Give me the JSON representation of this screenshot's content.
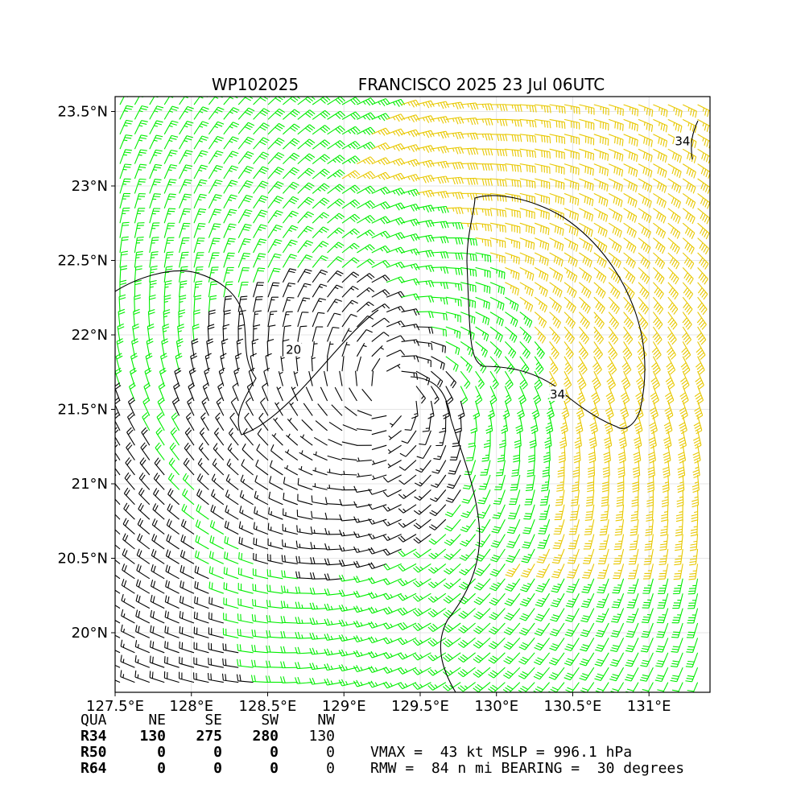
{
  "chart_data": {
    "type": "wind-barb-map",
    "title_id": "WP102025",
    "title_main": "FRANCISCO 2025 23 Jul 06UTC",
    "lon_range": [
      127.5,
      131.4
    ],
    "lat_range": [
      19.6,
      23.6
    ],
    "x_ticks": [
      127.5,
      128.0,
      128.5,
      129.0,
      129.5,
      130.0,
      130.5,
      131.0
    ],
    "x_tick_labels": [
      "127.5°E",
      "128°E",
      "128.5°E",
      "129°E",
      "129.5°E",
      "130°E",
      "130.5°E",
      "131°E"
    ],
    "y_ticks": [
      20.0,
      20.5,
      21.0,
      21.5,
      22.0,
      22.5,
      23.0,
      23.5
    ],
    "y_tick_labels": [
      "20°N",
      "20.5°N",
      "21°N",
      "21.5°N",
      "22°N",
      "22.5°N",
      "23°N",
      "23.5°N"
    ],
    "grid": true,
    "storm_center": {
      "lon": 129.3,
      "lat": 21.6
    },
    "contour_labels": [
      {
        "text": "20",
        "lon": 128.67,
        "lat": 21.9
      },
      {
        "text": "34",
        "lon": 130.4,
        "lat": 21.6
      },
      {
        "text": "34",
        "lon": 131.22,
        "lat": 23.3
      }
    ],
    "barb_colors": {
      "weak": "#000000",
      "moderate": "#00ee00",
      "strong": "#e8c800"
    },
    "speed_thresholds_kt": [
      20,
      34
    ],
    "vmax_kt": 43,
    "rmw_nmi": 84
  },
  "radii_table": {
    "header": [
      "QUA",
      "NE",
      "SE",
      "SW",
      "NW"
    ],
    "rows": [
      {
        "label": "R34",
        "values": [
          "130",
          "275",
          "280",
          "130"
        ]
      },
      {
        "label": "R50",
        "values": [
          "0",
          "0",
          "0",
          "0"
        ]
      },
      {
        "label": "R64",
        "values": [
          "0",
          "0",
          "0",
          "0"
        ]
      }
    ]
  },
  "summary": {
    "line1": "VMAX =  43 kt MSLP = 996.1 hPa",
    "line2": "RMW =  84 n mi BEARING =  30 degrees"
  }
}
